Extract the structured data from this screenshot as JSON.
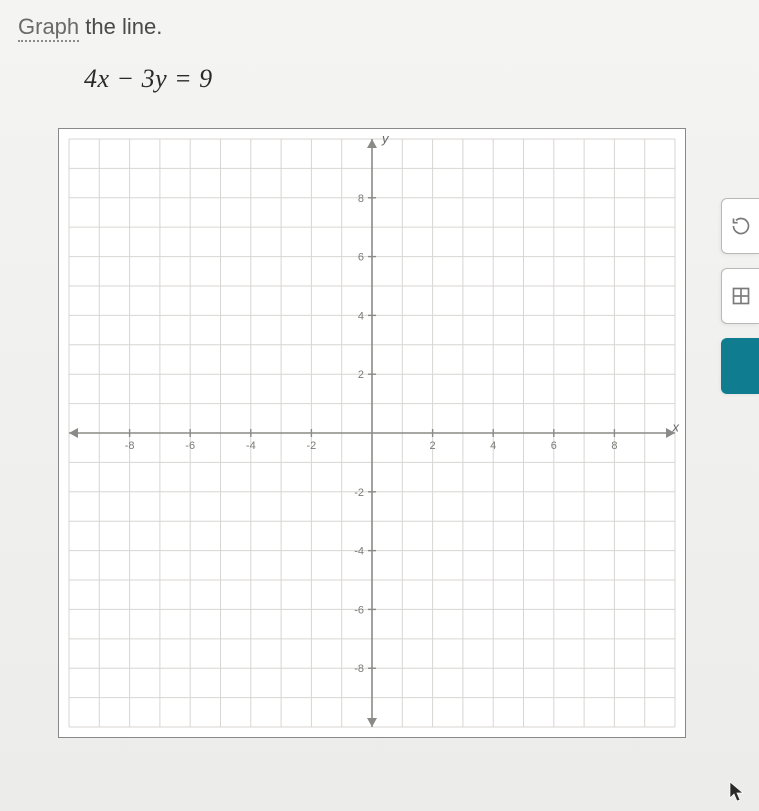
{
  "instruction": {
    "keyword": "Graph",
    "rest": " the line."
  },
  "equation": "4x − 3y = 9",
  "graph": {
    "type": "cartesian-grid",
    "x_axis_label": "x",
    "y_axis_label": "y",
    "xlim": [
      -10,
      10
    ],
    "ylim": [
      -10,
      10
    ],
    "major_step": 1,
    "labeled_ticks_x": [
      -8,
      -6,
      -4,
      -2,
      2,
      4,
      6,
      8
    ],
    "labeled_ticks_y": [
      -8,
      -6,
      -4,
      -2,
      2,
      4,
      6,
      8
    ],
    "background_color": "#ffffff",
    "grid_color": "#d8d6d2",
    "axis_color": "#8a8a86",
    "tick_label_color": "#7a7a76",
    "tick_label_fontsize": 11,
    "border_color": "#888888"
  },
  "tools": {
    "reset_icon": "reset-icon",
    "grid_icon": "grid-icon",
    "submit_color": "#0f7d8f"
  }
}
